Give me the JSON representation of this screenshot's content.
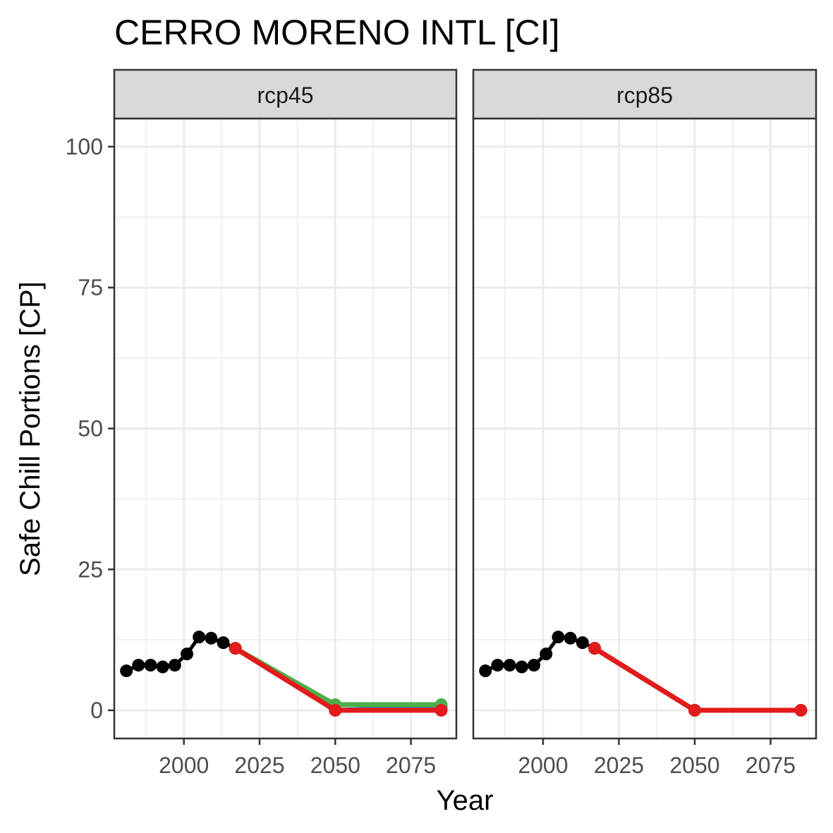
{
  "chart_data": {
    "type": "line",
    "title": "CERRO MORENO INTL [CI]",
    "xlabel": "Year",
    "ylabel": "Safe Chill Portions [CP]",
    "xlim": [
      1977,
      2090
    ],
    "ylim": [
      -5,
      105
    ],
    "xticks": [
      2000,
      2025,
      2050,
      2075
    ],
    "xminor": [
      1987.5,
      2012.5,
      2037.5,
      2062.5,
      2087.5
    ],
    "yticks": [
      0,
      25,
      50,
      75,
      100
    ],
    "yminor": [
      12.5,
      37.5,
      62.5,
      87.5
    ],
    "grid": true,
    "panels": [
      {
        "label": "rcp45",
        "observed": {
          "color": "#000000",
          "x": [
            1981,
            1985,
            1989,
            1993,
            1997,
            2001,
            2005,
            2009,
            2013,
            2017
          ],
          "y": [
            7,
            8,
            8,
            7.7,
            8,
            10,
            13,
            12.8,
            12,
            11
          ]
        },
        "series": [
          {
            "color": "#377EB8",
            "x": [
              2017,
              2050,
              2085
            ],
            "y": [
              11,
              0,
              0.5
            ]
          },
          {
            "color": "#4DAF4A",
            "x": [
              2017,
              2050,
              2085
            ],
            "y": [
              11,
              1,
              1
            ]
          },
          {
            "color": "#E41A1C",
            "x": [
              2017,
              2050,
              2085
            ],
            "y": [
              11,
              0,
              0
            ]
          }
        ]
      },
      {
        "label": "rcp85",
        "observed": {
          "color": "#000000",
          "x": [
            1981,
            1985,
            1989,
            1993,
            1997,
            2001,
            2005,
            2009,
            2013,
            2017
          ],
          "y": [
            7,
            8,
            8,
            7.7,
            8,
            10,
            13,
            12.8,
            12,
            11
          ]
        },
        "series": [
          {
            "color": "#377EB8",
            "x": [
              2017,
              2050,
              2085
            ],
            "y": [
              11,
              0,
              0
            ]
          },
          {
            "color": "#4DAF4A",
            "x": [
              2017,
              2050,
              2085
            ],
            "y": [
              11,
              0,
              0
            ]
          },
          {
            "color": "#E41A1C",
            "x": [
              2017,
              2050,
              2085
            ],
            "y": [
              11,
              0,
              0
            ]
          }
        ]
      }
    ]
  }
}
